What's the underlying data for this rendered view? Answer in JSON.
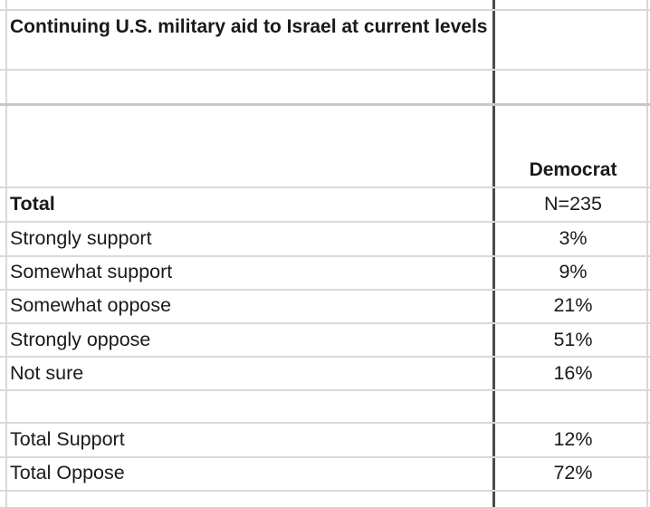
{
  "sheet": {
    "question_title": "Continuing U.S. military aid to Israel at current levels",
    "column_header": "Democrat",
    "total_label": "Total",
    "total_n": "N=235",
    "rows": [
      {
        "label": "Strongly support",
        "value": "3%"
      },
      {
        "label": "Somewhat support",
        "value": "9%"
      },
      {
        "label": "Somewhat oppose",
        "value": "21%"
      },
      {
        "label": "Strongly oppose",
        "value": "51%"
      },
      {
        "label": "Not sure",
        "value": "16%"
      }
    ],
    "summary": [
      {
        "label": "Total Support",
        "value": "12%"
      },
      {
        "label": "Total Oppose",
        "value": "72%"
      }
    ]
  }
}
